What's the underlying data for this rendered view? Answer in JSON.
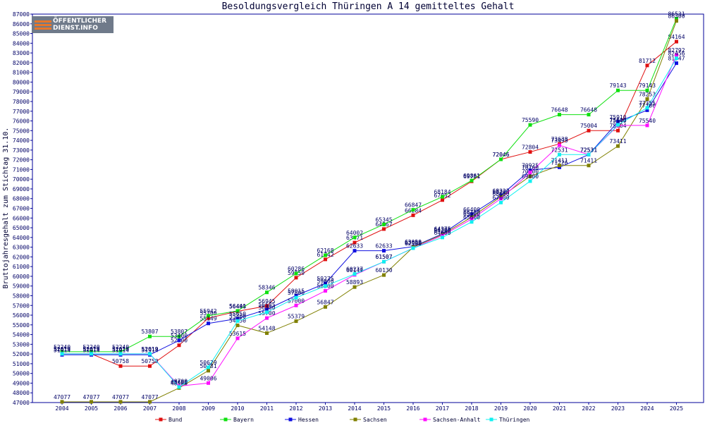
{
  "chart_data": {
    "type": "line",
    "title": "Besoldungsvergleich Thüringen A 14 gemitteltes Gehalt",
    "ylabel": "Bruttojahresgehalt zum Stichtag 31.10.",
    "xlabel": "",
    "ylim": [
      47000,
      87000
    ],
    "y_ticks": [
      47000,
      48000,
      49000,
      50000,
      51000,
      52000,
      53000,
      54000,
      55000,
      56000,
      57000,
      58000,
      59000,
      60000,
      61000,
      62000,
      63000,
      64000,
      65000,
      66000,
      67000,
      68000,
      69000,
      70000,
      71000,
      72000,
      73000,
      74000,
      75000,
      76000,
      77000,
      78000,
      79000,
      80000,
      81000,
      82000,
      83000,
      84000,
      85000,
      86000,
      87000
    ],
    "categories": [
      "2004",
      "2005",
      "2006",
      "2007",
      "2008",
      "2009",
      "2010",
      "2011",
      "2012",
      "2013",
      "2014",
      "2015",
      "2016",
      "2017",
      "2018",
      "2019",
      "2020",
      "2021",
      "2022",
      "2023",
      "2024",
      "2025"
    ],
    "legend_position": "bottom",
    "grid": false,
    "series": [
      {
        "name": "Bund",
        "color": "#e01010",
        "values": [
          52019,
          52019,
          50758,
          50758,
          52900,
          55700,
          56400,
          56945,
          59859,
          61742,
          63471,
          64867,
          66284,
          67852,
          69781,
          72046,
          72804,
          73638,
          75004,
          75004,
          81712,
          84164
        ]
      },
      {
        "name": "Bayern",
        "color": "#10e010",
        "values": [
          52240,
          52240,
          52240,
          53807,
          53807,
          55942,
          56441,
          58346,
          60286,
          62168,
          64002,
          65345,
          66847,
          68184,
          69861,
          72046,
          75590,
          76648,
          76648,
          79143,
          79143,
          86531
        ]
      },
      {
        "name": "Hessen",
        "color": "#1010e0",
        "values": [
          51914,
          51914,
          51914,
          51914,
          53400,
          55149,
          55650,
          56585,
          58015,
          59275,
          62633,
          62633,
          63059,
          64375,
          66400,
          68322,
          70925,
          71226,
          72531,
          75910,
          77100,
          81947
        ]
      },
      {
        "name": "Sachsen",
        "color": "#808000",
        "values": [
          47077,
          47077,
          47077,
          47077,
          48500,
          50281,
          54950,
          54148,
          55379,
          56847,
          58893,
          60130,
          63000,
          64300,
          66100,
          68200,
          70300,
          71411,
          71411,
          73411,
          78253,
          86300
        ]
      },
      {
        "name": "Sachsen-Anhalt",
        "color": "#ff10ff",
        "values": [
          52019,
          52019,
          52019,
          52019,
          48700,
          49006,
          53615,
          55700,
          57000,
          58500,
          60149,
          61507,
          62900,
          64200,
          65900,
          68000,
          70700,
          73493,
          72531,
          75540,
          75540,
          82792
        ]
      },
      {
        "name": "Thüringen",
        "color": "#10f0f0",
        "values": [
          52019,
          52019,
          52019,
          52019,
          48600,
          50629,
          55400,
          56300,
          57800,
          59000,
          60237,
          61507,
          62900,
          64000,
          65600,
          67600,
          69800,
          72531,
          72531,
          75600,
          77355,
          82456
        ]
      }
    ]
  }
}
